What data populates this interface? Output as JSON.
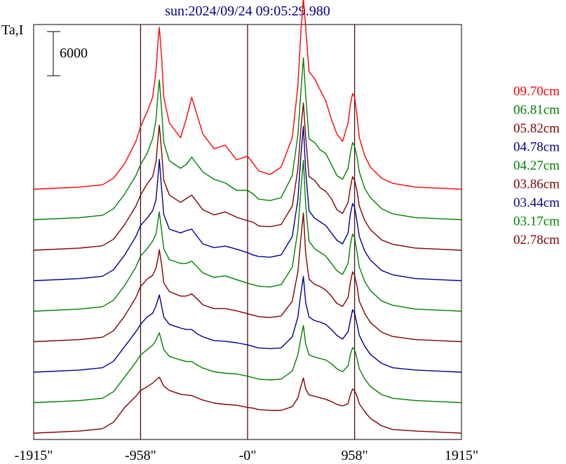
{
  "chart_data": {
    "type": "line",
    "title": "sun:2024/09/24 09:05:29.980",
    "ylabel": "Ta,I",
    "scale_bar_label": "6000",
    "scale_bar_value": 6000,
    "xlim": [
      -1915,
      1915
    ],
    "x_ticks": [
      {
        "value": -1915,
        "label": "-1915\""
      },
      {
        "value": -958,
        "label": "-958\""
      },
      {
        "value": 0,
        "label": "-0\""
      },
      {
        "value": 958,
        "label": "958\""
      },
      {
        "value": 1915,
        "label": "1915\""
      }
    ],
    "vertical_markers": [
      -958,
      0,
      958
    ],
    "series": [
      {
        "name": "09.70cm",
        "color": "#ff0000",
        "x": [
          -1915,
          -1500,
          -1300,
          -1200,
          -1100,
          -1000,
          -958,
          -900,
          -850,
          -820,
          -800,
          -790,
          -770,
          -750,
          -700,
          -600,
          -550,
          -500,
          -450,
          -400,
          -300,
          -200,
          -100,
          0,
          50,
          100,
          200,
          300,
          400,
          450,
          480,
          500,
          520,
          550,
          600,
          650,
          700,
          750,
          800,
          850,
          900,
          920,
          940,
          958,
          980,
          1000,
          1050,
          1100,
          1200,
          1300,
          1500,
          1915
        ],
        "y": [
          0,
          300,
          600,
          1500,
          3500,
          6500,
          8500,
          10500,
          12500,
          16000,
          20500,
          22000,
          18000,
          12500,
          9000,
          7000,
          9500,
          12500,
          10000,
          7500,
          5500,
          6000,
          4000,
          4500,
          3500,
          2500,
          2000,
          3000,
          7000,
          14000,
          22000,
          26000,
          22000,
          16000,
          15000,
          13500,
          12000,
          9500,
          7500,
          6500,
          9000,
          11500,
          13000,
          12500,
          10000,
          7000,
          4500,
          3000,
          1500,
          800,
          300,
          0
        ]
      },
      {
        "name": "06.81cm",
        "color": "#008000",
        "x": [
          -1915,
          -1500,
          -1300,
          -1200,
          -1100,
          -1000,
          -958,
          -900,
          -850,
          -820,
          -800,
          -790,
          -770,
          -750,
          -700,
          -600,
          -550,
          -500,
          -450,
          -400,
          -300,
          -200,
          -100,
          0,
          50,
          100,
          200,
          300,
          400,
          450,
          480,
          500,
          520,
          550,
          600,
          650,
          700,
          750,
          800,
          850,
          900,
          920,
          940,
          958,
          980,
          1000,
          1050,
          1100,
          1200,
          1300,
          1500,
          1915
        ],
        "y": [
          0,
          300,
          600,
          1500,
          3500,
          6000,
          7500,
          9000,
          11000,
          13500,
          17500,
          19000,
          15000,
          10500,
          8000,
          7000,
          7500,
          8500,
          7500,
          6500,
          5500,
          5000,
          4000,
          4000,
          3500,
          2800,
          2600,
          3000,
          6000,
          11500,
          18000,
          22000,
          17000,
          11000,
          10500,
          9500,
          9000,
          7500,
          6000,
          5500,
          7000,
          9000,
          10500,
          10000,
          8500,
          6500,
          4200,
          3000,
          1500,
          800,
          300,
          0
        ]
      },
      {
        "name": "05.82cm",
        "color": "#800000",
        "x": [
          -1915,
          -1500,
          -1300,
          -1200,
          -1100,
          -1000,
          -958,
          -900,
          -850,
          -820,
          -800,
          -790,
          -770,
          -750,
          -700,
          -600,
          -550,
          -500,
          -450,
          -400,
          -300,
          -200,
          -100,
          0,
          50,
          100,
          200,
          300,
          400,
          450,
          480,
          500,
          520,
          550,
          600,
          650,
          700,
          750,
          800,
          850,
          900,
          920,
          940,
          958,
          980,
          1000,
          1050,
          1100,
          1200,
          1300,
          1500,
          1915
        ],
        "y": [
          0,
          300,
          600,
          1500,
          3500,
          6000,
          7500,
          9000,
          10000,
          12000,
          15500,
          17000,
          13500,
          9500,
          7500,
          6500,
          7000,
          7500,
          6500,
          5500,
          4800,
          5200,
          4500,
          4000,
          3800,
          3300,
          3200,
          3500,
          6000,
          11000,
          17000,
          20000,
          15500,
          10000,
          9500,
          8500,
          8000,
          7000,
          5500,
          5000,
          6500,
          8500,
          10000,
          9500,
          8000,
          6000,
          4000,
          2800,
          1400,
          800,
          300,
          0
        ]
      },
      {
        "name": "04.78cm",
        "color": "#00008b",
        "x": [
          -1915,
          -1500,
          -1300,
          -1200,
          -1100,
          -1000,
          -958,
          -900,
          -850,
          -820,
          -800,
          -790,
          -770,
          -750,
          -700,
          -600,
          -550,
          -500,
          -450,
          -400,
          -300,
          -200,
          -100,
          0,
          50,
          100,
          200,
          300,
          400,
          450,
          480,
          500,
          520,
          550,
          600,
          650,
          700,
          750,
          800,
          850,
          900,
          920,
          940,
          958,
          980,
          1000,
          1050,
          1100,
          1200,
          1300,
          1500,
          1915
        ],
        "y": [
          0,
          300,
          600,
          1500,
          3500,
          6000,
          7500,
          8500,
          9500,
          11000,
          14500,
          16500,
          12500,
          9000,
          7000,
          6500,
          6800,
          7000,
          6000,
          5000,
          4500,
          4700,
          4300,
          3800,
          3500,
          3300,
          3200,
          3500,
          6000,
          11000,
          17500,
          21000,
          15000,
          9500,
          8500,
          8000,
          7500,
          6500,
          5500,
          5000,
          6500,
          9000,
          10500,
          10000,
          8000,
          6000,
          4000,
          2800,
          1400,
          800,
          300,
          0
        ]
      },
      {
        "name": "04.27cm",
        "color": "#008000",
        "x": [
          -1915,
          -1500,
          -1300,
          -1200,
          -1100,
          -1000,
          -958,
          -900,
          -850,
          -820,
          -800,
          -790,
          -770,
          -750,
          -700,
          -600,
          -550,
          -500,
          -450,
          -400,
          -300,
          -200,
          -100,
          0,
          50,
          100,
          200,
          300,
          400,
          450,
          480,
          500,
          520,
          550,
          600,
          650,
          700,
          750,
          800,
          850,
          900,
          920,
          940,
          958,
          980,
          1000,
          1050,
          1100,
          1200,
          1300,
          1500,
          1915
        ],
        "y": [
          0,
          300,
          600,
          1500,
          3500,
          6000,
          7500,
          8500,
          9500,
          10500,
          12500,
          13500,
          11000,
          8500,
          7000,
          6500,
          6500,
          6800,
          6000,
          5200,
          4600,
          4800,
          4300,
          3800,
          3600,
          3400,
          3300,
          3600,
          6000,
          11000,
          17000,
          20500,
          14500,
          9500,
          8500,
          8000,
          7500,
          6500,
          5500,
          5000,
          6500,
          9000,
          10500,
          10000,
          8000,
          6000,
          4000,
          2800,
          1400,
          800,
          300,
          0
        ]
      },
      {
        "name": "03.86cm",
        "color": "#800000",
        "x": [
          -1915,
          -1500,
          -1300,
          -1200,
          -1100,
          -1000,
          -958,
          -900,
          -850,
          -820,
          -800,
          -790,
          -770,
          -750,
          -700,
          -600,
          -550,
          -500,
          -450,
          -400,
          -300,
          -200,
          -100,
          0,
          50,
          100,
          200,
          300,
          400,
          450,
          480,
          500,
          520,
          550,
          600,
          650,
          700,
          750,
          800,
          850,
          900,
          920,
          940,
          958,
          980,
          1000,
          1050,
          1100,
          1200,
          1300,
          1500,
          1915
        ],
        "y": [
          0,
          300,
          600,
          1500,
          3500,
          6000,
          7500,
          8500,
          9000,
          10000,
          11500,
          12500,
          10500,
          8000,
          6800,
          6200,
          6200,
          6500,
          5800,
          5000,
          4500,
          4500,
          4200,
          3800,
          3600,
          3400,
          3300,
          3500,
          5500,
          9500,
          14500,
          17500,
          12000,
          8500,
          7800,
          7500,
          7000,
          6200,
          5200,
          4800,
          6000,
          8000,
          9500,
          9000,
          7500,
          5500,
          3800,
          2600,
          1300,
          700,
          300,
          0
        ]
      },
      {
        "name": "03.44cm",
        "color": "#00008b",
        "x": [
          -1915,
          -1500,
          -1300,
          -1200,
          -1100,
          -1000,
          -958,
          -900,
          -850,
          -820,
          -800,
          -790,
          -770,
          -750,
          -700,
          -600,
          -550,
          -500,
          -450,
          -400,
          -300,
          -200,
          -100,
          0,
          50,
          100,
          200,
          300,
          400,
          450,
          480,
          500,
          520,
          550,
          600,
          650,
          700,
          750,
          800,
          850,
          900,
          920,
          940,
          958,
          980,
          1000,
          1050,
          1100,
          1200,
          1300,
          1500,
          1915
        ],
        "y": [
          0,
          300,
          600,
          1500,
          3500,
          5500,
          6500,
          7500,
          8000,
          9000,
          10000,
          10500,
          9000,
          7500,
          6500,
          6000,
          5800,
          5800,
          5200,
          4800,
          4300,
          4200,
          4000,
          3700,
          3500,
          3300,
          3200,
          3300,
          4800,
          7500,
          11000,
          13000,
          9500,
          7500,
          7000,
          6800,
          6500,
          5800,
          5000,
          4500,
          5500,
          7000,
          8500,
          8000,
          6500,
          5000,
          3500,
          2400,
          1200,
          600,
          300,
          0
        ]
      },
      {
        "name": "03.17cm",
        "color": "#008000",
        "x": [
          -1915,
          -1500,
          -1300,
          -1200,
          -1100,
          -1000,
          -958,
          -900,
          -850,
          -820,
          -800,
          -790,
          -770,
          -750,
          -700,
          -600,
          -550,
          -500,
          -450,
          -400,
          -300,
          -200,
          -100,
          0,
          50,
          100,
          200,
          300,
          400,
          450,
          480,
          500,
          520,
          550,
          600,
          650,
          700,
          750,
          800,
          850,
          900,
          920,
          940,
          958,
          980,
          1000,
          1050,
          1100,
          1200,
          1300,
          1500,
          1915
        ],
        "y": [
          0,
          300,
          600,
          1500,
          3500,
          5500,
          6500,
          7200,
          7800,
          8500,
          9200,
          9500,
          8300,
          7200,
          6300,
          5800,
          5600,
          5600,
          5100,
          4700,
          4200,
          4000,
          3900,
          3600,
          3400,
          3200,
          3100,
          3200,
          4300,
          6500,
          9000,
          10500,
          8000,
          6500,
          6200,
          6000,
          5800,
          5300,
          4600,
          4200,
          5000,
          6500,
          7500,
          7200,
          6000,
          4600,
          3200,
          2200,
          1100,
          600,
          300,
          0
        ]
      },
      {
        "name": "02.78cm",
        "color": "#800000",
        "x": [
          -1915,
          -1500,
          -1300,
          -1200,
          -1100,
          -1000,
          -958,
          -900,
          -850,
          -820,
          -800,
          -790,
          -770,
          -750,
          -700,
          -600,
          -550,
          -500,
          -450,
          -400,
          -300,
          -200,
          -100,
          0,
          50,
          100,
          200,
          300,
          400,
          450,
          480,
          500,
          520,
          550,
          600,
          650,
          700,
          750,
          800,
          850,
          900,
          920,
          940,
          958,
          980,
          1000,
          1050,
          1100,
          1200,
          1300,
          1500,
          1915
        ],
        "y": [
          0,
          300,
          600,
          1500,
          3500,
          5000,
          5800,
          6300,
          6800,
          7200,
          7500,
          7600,
          7000,
          6400,
          5800,
          5300,
          5200,
          5100,
          4800,
          4500,
          4100,
          3900,
          3800,
          3500,
          3400,
          3200,
          3100,
          3100,
          3600,
          4800,
          6500,
          7500,
          6000,
          5200,
          5000,
          4800,
          4600,
          4300,
          3900,
          3700,
          4000,
          5200,
          6000,
          5800,
          5000,
          4000,
          2900,
          2000,
          1000,
          500,
          300,
          0
        ]
      }
    ]
  }
}
